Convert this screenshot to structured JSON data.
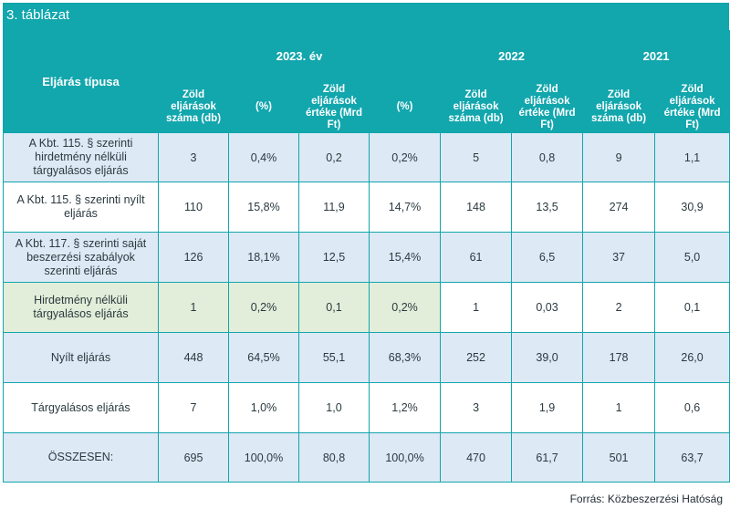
{
  "caption": "3. táblázat",
  "header": {
    "type_label": "Eljárás típusa",
    "years": [
      "2023. év",
      "2022",
      "2021"
    ],
    "subcols": [
      "Zöld eljárások száma (db)",
      "(%)",
      "Zöld eljárások értéke (Mrd Ft)",
      "(%)",
      "Zöld eljárások száma (db)",
      "Zöld eljárások értéke (Mrd Ft)",
      "Zöld eljárások száma (db)",
      "Zöld eljárások értéke (Mrd Ft)"
    ]
  },
  "rows": [
    {
      "label": "A Kbt. 115. § szerinti hirdetmény nélküli tárgyalásos eljárás",
      "values": [
        "3",
        "0,4%",
        "0,2",
        "0,2%",
        "5",
        "0,8",
        "9",
        "1,1"
      ]
    },
    {
      "label": "A Kbt. 115. § szerinti nyílt eljárás",
      "values": [
        "110",
        "15,8%",
        "11,9",
        "14,7%",
        "148",
        "13,5",
        "274",
        "30,9"
      ]
    },
    {
      "label": "A Kbt. 117. § szerinti saját beszerzési szabályok szerinti eljárás",
      "values": [
        "126",
        "18,1%",
        "12,5",
        "15,4%",
        "61",
        "6,5",
        "37",
        "5,0"
      ]
    },
    {
      "label": "Hirdetmény nélküli tárgyalásos eljárás",
      "values": [
        "1",
        "0,2%",
        "0,1",
        "0,2%",
        "1",
        "0,03",
        "2",
        "0,1"
      ]
    },
    {
      "label": "Nyílt eljárás",
      "values": [
        "448",
        "64,5%",
        "55,1",
        "68,3%",
        "252",
        "39,0",
        "178",
        "26,0"
      ]
    },
    {
      "label": "Tárgyalásos eljárás",
      "values": [
        "7",
        "1,0%",
        "1,0",
        "1,2%",
        "3",
        "1,9",
        "1",
        "0,6"
      ]
    },
    {
      "label": "ÖSSZESEN:",
      "values": [
        "695",
        "100,0%",
        "80,8",
        "100,0%",
        "470",
        "61,7",
        "501",
        "63,7"
      ]
    }
  ],
  "source": "Forrás: Közbeszerzési Hatóság"
}
